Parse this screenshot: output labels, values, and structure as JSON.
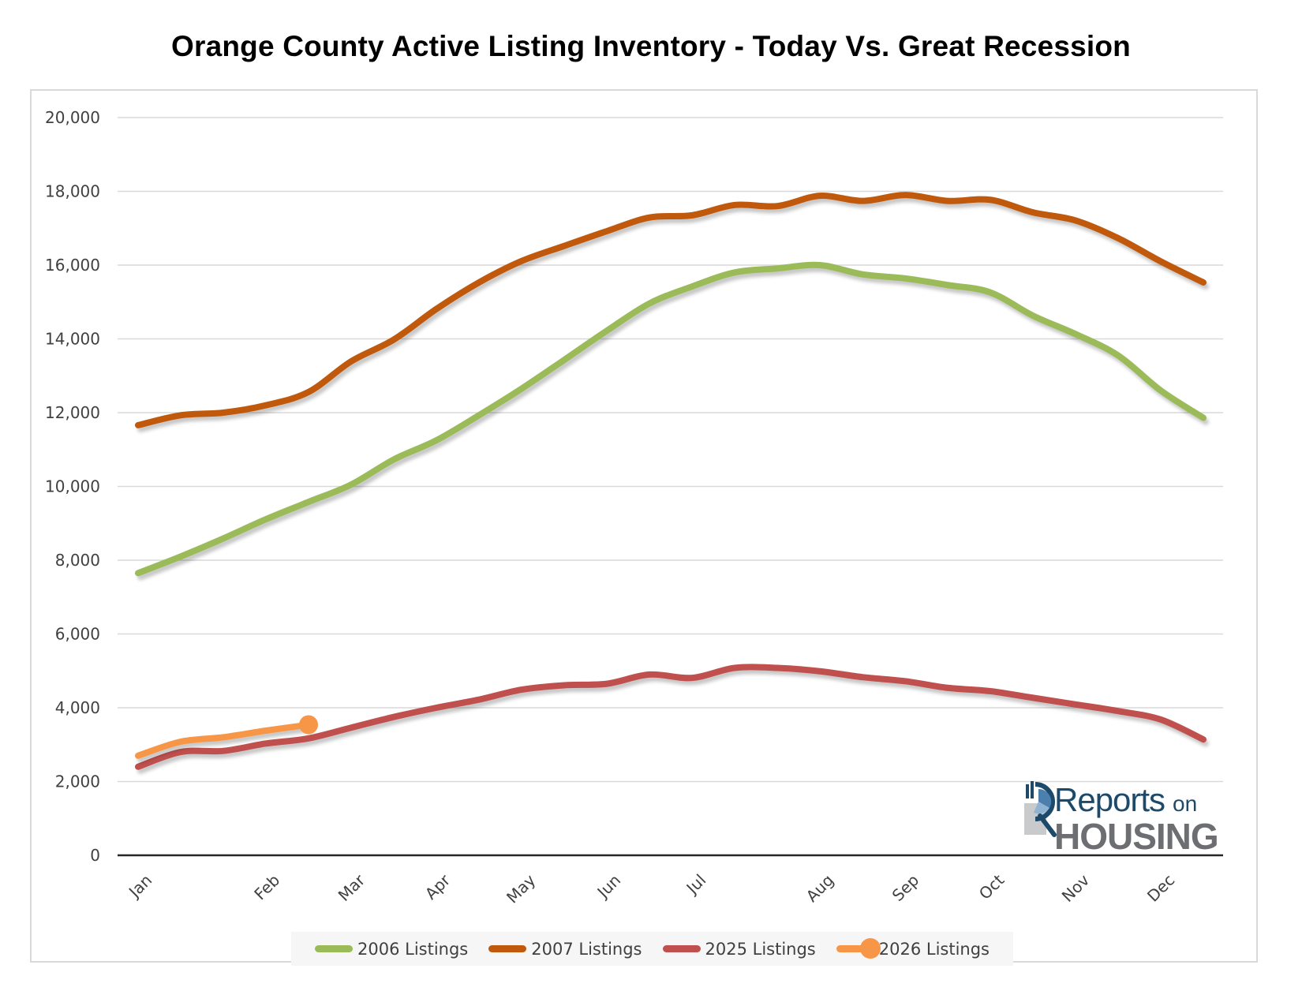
{
  "chart_data": {
    "type": "line",
    "title": "Orange County Active Listing Inventory - Today Vs. Great Recession",
    "xlabel": "",
    "ylabel": "",
    "ylim": [
      0,
      20000
    ],
    "yticks": [
      0,
      2000,
      4000,
      6000,
      8000,
      10000,
      12000,
      14000,
      16000,
      18000,
      20000
    ],
    "ytick_labels": [
      "0",
      "2,000",
      "4,000",
      "6,000",
      "8,000",
      "10,000",
      "12,000",
      "14,000",
      "16,000",
      "18,000",
      "20,000"
    ],
    "grid": true,
    "legend_position": "bottom",
    "point_count": 26,
    "x_tick_labels": [
      {
        "index": 0,
        "label": "Jan"
      },
      {
        "index": 3,
        "label": "Feb"
      },
      {
        "index": 5,
        "label": "Mar"
      },
      {
        "index": 7,
        "label": "Apr"
      },
      {
        "index": 9,
        "label": "May"
      },
      {
        "index": 11,
        "label": "Jun"
      },
      {
        "index": 13,
        "label": "Jul"
      },
      {
        "index": 16,
        "label": "Aug"
      },
      {
        "index": 18,
        "label": "Sep"
      },
      {
        "index": 20,
        "label": "Oct"
      },
      {
        "index": 22,
        "label": "Nov"
      },
      {
        "index": 24,
        "label": "Dec"
      }
    ],
    "series": [
      {
        "name": "2006 Listings",
        "color": "#9bbb59",
        "marker_at_end": false,
        "values": [
          7650,
          8100,
          8590,
          9110,
          9580,
          10050,
          10730,
          11250,
          11930,
          12650,
          13430,
          14220,
          14960,
          15420,
          15800,
          15910,
          16000,
          15750,
          15640,
          15460,
          15260,
          14630,
          14130,
          13550,
          12600,
          11860
        ]
      },
      {
        "name": "2007 Listings",
        "color": "#c0590b",
        "marker_at_end": false,
        "values": [
          11660,
          11930,
          12000,
          12200,
          12560,
          13390,
          13980,
          14810,
          15530,
          16110,
          16520,
          16920,
          17290,
          17350,
          17630,
          17600,
          17880,
          17740,
          17900,
          17740,
          17770,
          17430,
          17210,
          16730,
          16100,
          15530
        ]
      },
      {
        "name": "2025 Listings",
        "color": "#c0504d",
        "marker_at_end": false,
        "values": [
          2400,
          2800,
          2830,
          3030,
          3170,
          3460,
          3750,
          4000,
          4220,
          4490,
          4610,
          4650,
          4900,
          4810,
          5080,
          5080,
          4990,
          4830,
          4720,
          4540,
          4450,
          4270,
          4090,
          3910,
          3680,
          3140
        ]
      },
      {
        "name": "2026 Listings",
        "color": "#f79646",
        "marker_at_end": true,
        "values": [
          2700,
          3080,
          3200,
          3380,
          3540
        ]
      }
    ]
  },
  "logo": {
    "word1": "Reports",
    "word2": "on",
    "word3": "HOUSING"
  }
}
